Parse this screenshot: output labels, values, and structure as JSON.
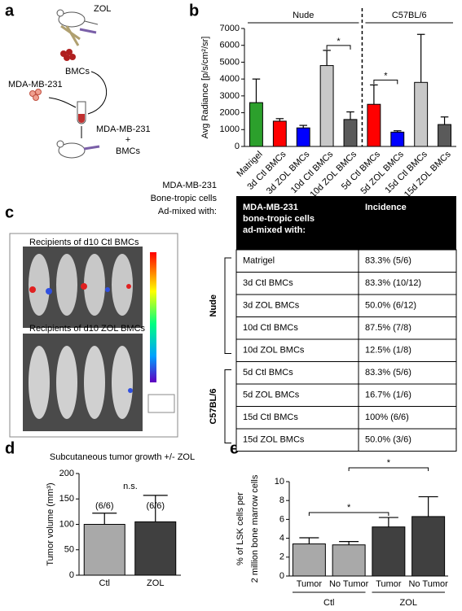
{
  "panel_letters": [
    "a",
    "b",
    "c",
    "d",
    "e"
  ],
  "diagram": {
    "labels": [
      "ZOL",
      "BMCs",
      "MDA-MB-231",
      "MDA-MB-231",
      "+",
      "BMCs"
    ]
  },
  "image": {
    "labels": [
      "Recipients of d10 Ctl BMCs",
      "Recipients of d10 ZOL BMCs"
    ]
  },
  "table": {
    "header": [
      [
        "MDA-MB-231",
        "bone-tropic cells",
        "ad-mixed with:"
      ],
      "Incidence"
    ],
    "groups": [
      "Nude",
      "C57BL/6"
    ],
    "rows": [
      [
        "Matrigel",
        "83.3% (5/6)"
      ],
      [
        "3d Ctl BMCs",
        "83.3% (10/12)"
      ],
      [
        "3d ZOL BMCs",
        "50.0% (6/12)"
      ],
      [
        "10d Ctl BMCs",
        "87.5% (7/8)"
      ],
      [
        "10d ZOL BMCs",
        "12.5% (1/8)"
      ],
      [
        "5d Ctl BMCs",
        "83.3% (5/6)"
      ],
      [
        "5d ZOL BMCs",
        "16.7% (1/6)"
      ],
      [
        "15d Ctl BMCs",
        "100% (6/6)"
      ],
      [
        "15d ZOL BMCs",
        "50.0% (3/6)"
      ]
    ]
  },
  "chart_data": [
    {
      "type": "bar",
      "y_label": [
        "Avg Radiance [p/s/cm²/sr]"
      ],
      "categories": [
        "Matrigel",
        "3d Ctl BMCs",
        "3d ZOL BMCs",
        "10d Ctl BMCs",
        "10d ZOL BMCs",
        "5d Ctl BMCs",
        "5d ZOL BMCs",
        "15d Ctl BMCs",
        "15d ZOL BMCs"
      ],
      "values": [
        2600,
        1500,
        1100,
        4800,
        1600,
        2500,
        850,
        3800,
        1300
      ],
      "errors": [
        1400,
        150,
        150,
        900,
        450,
        1150,
        80,
        2850,
        450
      ],
      "colors": [
        "#2ca02c",
        "#ff0000",
        "#0000ff",
        "#c8c8c8",
        "#5a5a5a",
        "#ff0000",
        "#0000ff",
        "#c8c8c8",
        "#5a5a5a"
      ],
      "ylim": [
        0,
        7000
      ],
      "yticks": [
        0,
        1000,
        2000,
        3000,
        4000,
        5000,
        6000,
        7000
      ],
      "group_labels": [
        "Nude",
        "C57BL/6"
      ],
      "category_axis_label": [
        "MDA-MB-231",
        "Bone-tropic cells",
        "Ad-mixed with:"
      ],
      "annotations": [
        "*",
        "*"
      ]
    },
    {
      "type": "bar",
      "title": "Subcutaneous tumor growth +/- ZOL",
      "y_label": [
        "Tumor volume (mm³)"
      ],
      "categories": [
        "Ctl",
        "ZOL"
      ],
      "values": [
        100,
        105
      ],
      "errors": [
        22,
        52
      ],
      "colors": [
        "#a9a9a9",
        "#404040"
      ],
      "ylim": [
        0,
        200
      ],
      "yticks": [
        0,
        50,
        100,
        150,
        200
      ],
      "annotations": [
        "n.s.",
        "(6/6)",
        "(6/6)"
      ]
    },
    {
      "type": "bar",
      "y_label": [
        "% of LSK cells per",
        "2 million bone marrow cells"
      ],
      "categories": [
        "Tumor",
        "No Tumor",
        "Tumor",
        "No Tumor"
      ],
      "values": [
        3.4,
        3.3,
        5.2,
        6.3
      ],
      "errors": [
        0.65,
        0.35,
        1.0,
        2.1
      ],
      "colors": [
        "#a9a9a9",
        "#a9a9a9",
        "#404040",
        "#404040"
      ],
      "ylim": [
        0,
        10
      ],
      "yticks": [
        0,
        2,
        4,
        6,
        8,
        10
      ],
      "group_labels": [
        "Ctl",
        "ZOL"
      ],
      "annotations": [
        "*",
        "*"
      ]
    }
  ]
}
